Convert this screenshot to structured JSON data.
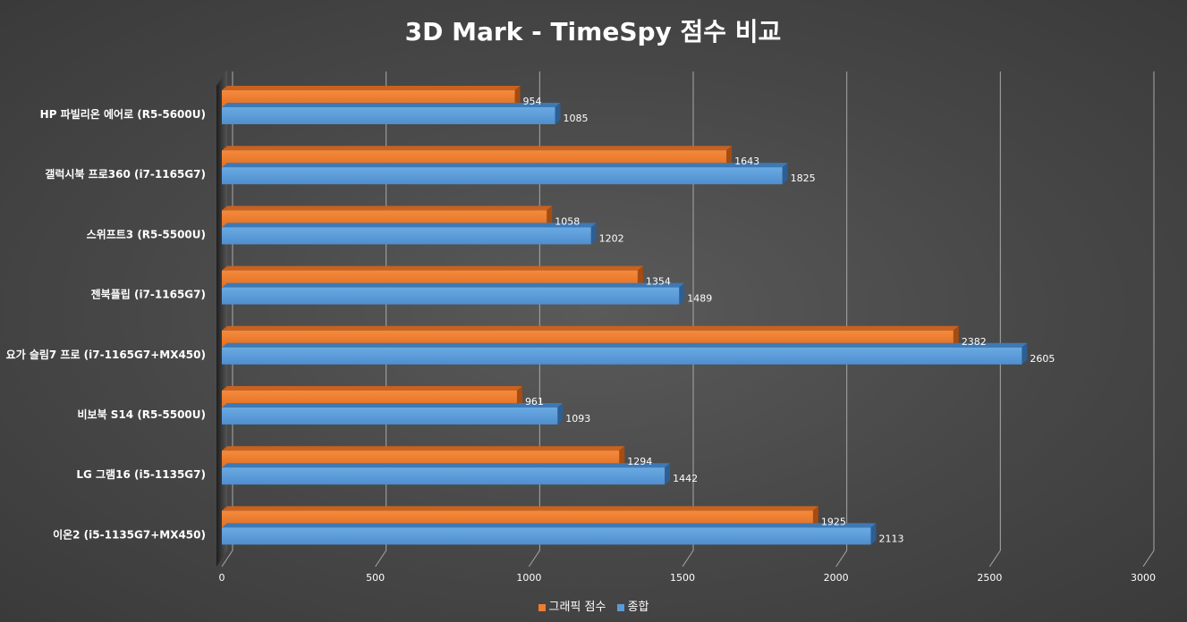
{
  "chart_data": {
    "type": "bar",
    "orientation": "horizontal",
    "style": "3d-clustered",
    "title": "3D Mark - TimeSpy 점수 비교",
    "categories": [
      "HP 파빌리온 에어로 (R5-5600U)",
      "갤럭시북 프로360 (i7-1165G7)",
      "스위프트3 (R5-5500U)",
      "젠북플립 (i7-1165G7)",
      "요가 슬림7 프로 (i7-1165G7+MX450)",
      "비보북 S14 (R5-5500U)",
      "LG 그램16 (i5-1135G7)",
      "이온2 (i5-1135G7+MX450)"
    ],
    "series": [
      {
        "name": "그래픽 점수",
        "color": "#ed7d31",
        "values": [
          954,
          1643,
          1058,
          1354,
          2382,
          961,
          1294,
          1925
        ]
      },
      {
        "name": "종합",
        "color": "#5b9bd5",
        "values": [
          1085,
          1825,
          1202,
          1489,
          2605,
          1093,
          1442,
          2113
        ]
      }
    ],
    "xlim": [
      0,
      3000
    ],
    "xticks": [
      "0",
      "500",
      "1000",
      "1500",
      "2000",
      "2500",
      "3000"
    ],
    "xtick_values": [
      0,
      500,
      1000,
      1500,
      2000,
      2500,
      3000
    ],
    "grid": true,
    "legend_position": "bottom"
  }
}
